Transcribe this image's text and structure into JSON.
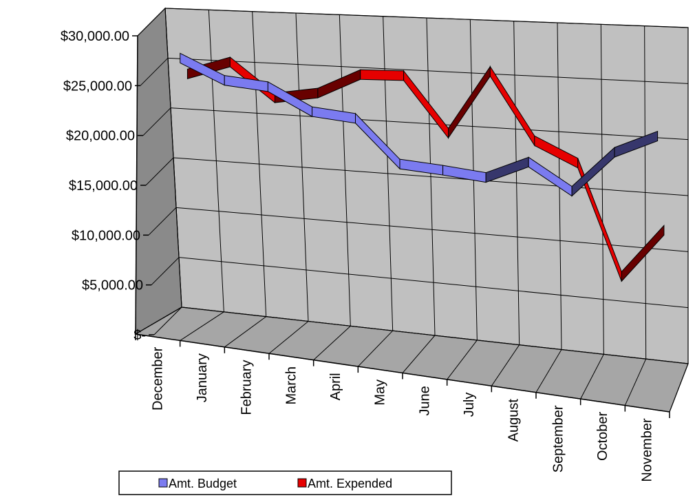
{
  "chart_data": {
    "type": "line",
    "style": "3d",
    "categories": [
      "December",
      "January",
      "February",
      "March",
      "April",
      "May",
      "June",
      "July",
      "August",
      "September",
      "October",
      "November"
    ],
    "series": [
      {
        "name": "Amt. Budget",
        "color": "#7b7bf0",
        "values": [
          26000,
          24000,
          23600,
          21400,
          21000,
          16900,
          16600,
          16200,
          17900,
          15500,
          19300,
          21000
        ]
      },
      {
        "name": "Amt. Expended",
        "color": "#e60000",
        "values": [
          23800,
          25200,
          21900,
          22600,
          24600,
          24700,
          19500,
          25500,
          19300,
          17500,
          7500,
          12000
        ]
      }
    ],
    "y_ticks": [
      "$-",
      "$5,000.00",
      "$10,000.00",
      "$15,000.00",
      "$20,000.00",
      "$25,000.00",
      "$30,000.00"
    ],
    "ylim": [
      0,
      30000
    ],
    "grid": true,
    "legend_position": "bottom-left",
    "colors": {
      "wall": "#c0c0c0",
      "floor": "#a6a6a6",
      "side": "#8a8a8a",
      "grid": "#000000"
    }
  }
}
